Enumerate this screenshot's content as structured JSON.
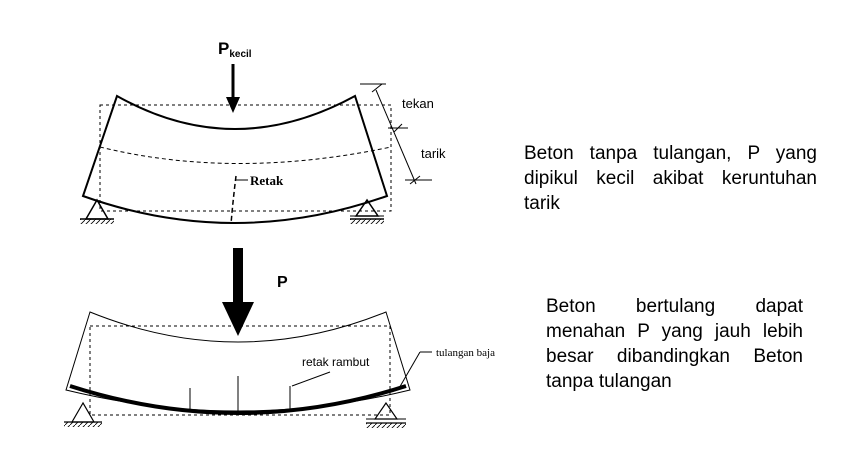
{
  "diagram_top": {
    "load_label_main": "P",
    "load_label_sub": "kecil",
    "zone_compression": "tekan",
    "zone_tension": "tarik",
    "crack_label": "Retak"
  },
  "diagram_bottom": {
    "load_label": "P",
    "crack_label": "retak rambut",
    "rebar_label": "tulangan baja"
  },
  "captions": {
    "plain_concrete": "Beton tanpa tulangan, P yang dipikul kecil akibat keruntuhan tarik",
    "reinforced_concrete": "Beton bertulang dapat menahan P yang jauh lebih besar dibandingkan Beton tanpa tulangan"
  }
}
